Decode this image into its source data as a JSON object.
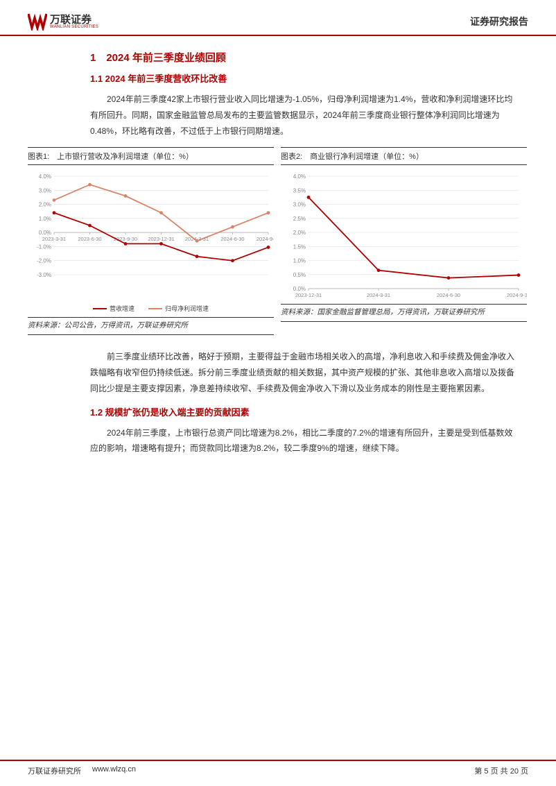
{
  "header": {
    "logo_cn": "万联证券",
    "logo_en": "WANLIAN SECURITIES",
    "report_type": "证券研究报告",
    "logo_color": "#b00000"
  },
  "section1": {
    "heading": "1　2024 年前三季度业绩回顾",
    "sub1_heading": "1.1 2024 年前三季度营收环比改善",
    "para1": "2024年前三季度42家上市银行营业收入同比增速为-1.05%，归母净利润增速为1.4%，营收和净利润增速环比均有所回升。同期，国家金融监管总局发布的主要监管数据显示，2024年前三季度商业银行整体净利润同比增速为0.48%，环比略有改善，不过低于上市银行同期增速。",
    "para2": "前三季度业绩环比改善，略好于预期，主要得益于金融市场相关收入的高增，净利息收入和手续费及佣金净收入跌幅略有收窄但仍持续低迷。拆分前三季度业绩贡献的相关数据，其中资产规模的扩张、其他非息收入高增以及拨备同比少提是主要支撑因素，净息差持续收窄、手续费及佣金净收入下滑以及业务成本的刚性是主要拖累因素。",
    "sub2_heading": "1.2 规模扩张仍是收入端主要的贡献因素",
    "para3": "2024年前三季度，上市银行总资产同比增速为8.2%，相比二季度的7.2%的增速有所回升，主要是受到低基数效应的影响，增速略有提升；而贷款同比增速为8.2%，较二季度9%的增速，继续下降。"
  },
  "chart1": {
    "title": "图表1:　上市银行营收及净利润增速（单位：%）",
    "type": "line",
    "source": "资料来源：公司公告，万得资讯，万联证券研究所",
    "x_labels": [
      "2023-3-31",
      "2023-6-30",
      "2023-9-30",
      "2023-12-31",
      "2024-3-31",
      "2024-6-30",
      "2024-9-30"
    ],
    "y_ticks": [
      -3.0,
      -2.0,
      -1.0,
      0.0,
      1.0,
      2.0,
      3.0,
      4.0
    ],
    "y_tick_labels": [
      "-3.0%",
      "-2.0%",
      "-1.0%",
      "0.0%",
      "1.0%",
      "2.0%",
      "3.0%",
      "4.0%"
    ],
    "ylim": [
      -3.0,
      4.0
    ],
    "series": [
      {
        "name": "营收增速",
        "color": "#b00000",
        "values": [
          1.4,
          0.5,
          -0.8,
          -0.8,
          -1.7,
          -2.0,
          -1.05
        ]
      },
      {
        "name": "归母净利润增速",
        "color": "#d9846a",
        "values": [
          2.3,
          3.4,
          2.6,
          1.4,
          -0.6,
          0.4,
          1.4
        ]
      }
    ],
    "axis_color": "#bbbbbb",
    "grid_color": "#dddddd",
    "label_color": "#888888",
    "label_fontsize": 8,
    "background": "#ffffff"
  },
  "chart2": {
    "title": "图表2:　商业银行净利润增速（单位：%）",
    "type": "line",
    "source": "资料来源：国家金融监督管理总局，万得资讯，万联证券研究所",
    "x_labels": [
      "2023-12-31",
      "2024-3-31",
      "2024-6-30",
      "2024-9-30"
    ],
    "y_ticks": [
      0.0,
      0.5,
      1.0,
      1.5,
      2.0,
      2.5,
      3.0,
      3.5,
      4.0
    ],
    "y_tick_labels": [
      "0.0%",
      "0.5%",
      "1.0%",
      "1.5%",
      "2.0%",
      "2.5%",
      "3.0%",
      "3.5%",
      "4.0%"
    ],
    "ylim": [
      0.0,
      4.0
    ],
    "series": [
      {
        "name": "净利润增速",
        "color": "#b00000",
        "values": [
          3.25,
          0.65,
          0.38,
          0.48
        ]
      }
    ],
    "axis_color": "#bbbbbb",
    "grid_color": "#dddddd",
    "label_color": "#888888",
    "label_fontsize": 8,
    "background": "#ffffff"
  },
  "footer": {
    "org": "万联证券研究所",
    "url": "www.wlzq.cn",
    "page": "第 5 页 共 20 页"
  }
}
